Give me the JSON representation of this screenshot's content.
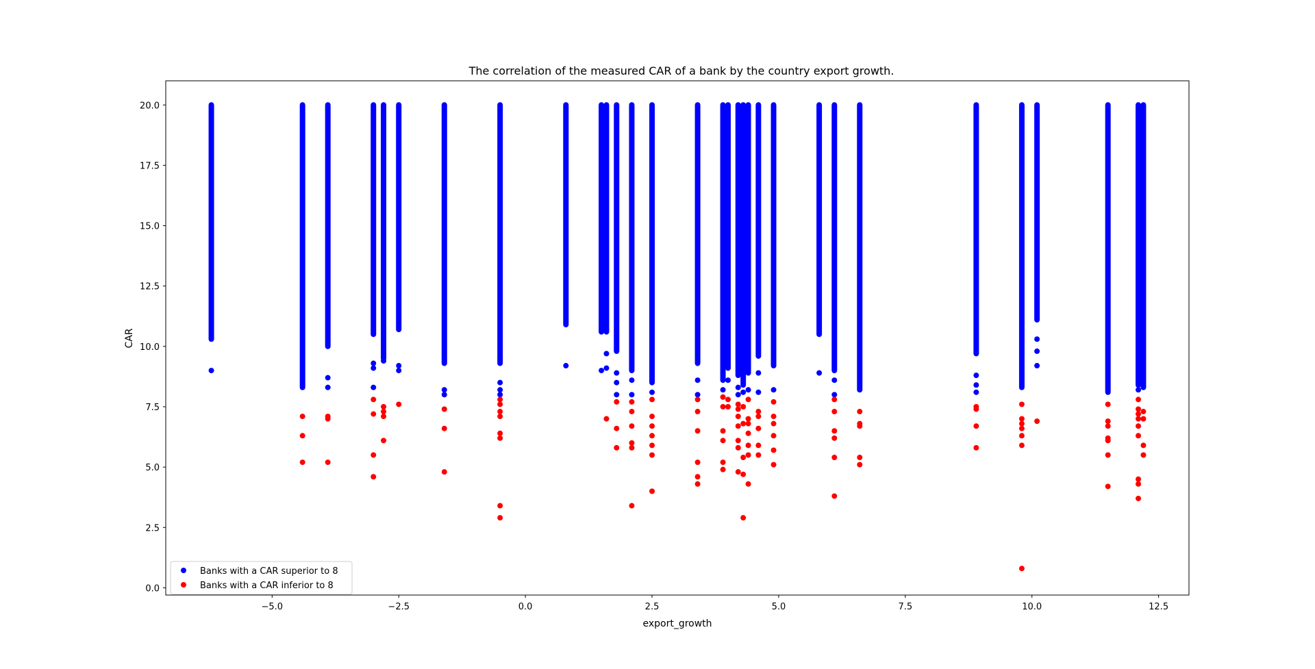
{
  "chart_data": {
    "type": "scatter",
    "title": "The correlation of the measured CAR of a bank by the country export growth.",
    "xlabel": "export_growth",
    "ylabel": "CAR",
    "xlim": [
      -7.1,
      13.1
    ],
    "ylim": [
      -0.3,
      21.0
    ],
    "xticks": [
      -5.0,
      -2.5,
      0.0,
      2.5,
      5.0,
      7.5,
      10.0,
      12.5
    ],
    "xtick_labels": [
      "−5.0",
      "−2.5",
      "0.0",
      "2.5",
      "5.0",
      "7.5",
      "10.0",
      "12.5"
    ],
    "yticks": [
      0.0,
      2.5,
      5.0,
      7.5,
      10.0,
      12.5,
      15.0,
      17.5,
      20.0
    ],
    "ytick_labels": [
      "0.0",
      "2.5",
      "5.0",
      "7.5",
      "10.0",
      "12.5",
      "15.0",
      "17.5",
      "20.0"
    ],
    "grid": false,
    "legend_position": "lower-left",
    "columns": [
      {
        "x": -6.2,
        "blue_min": 10.3,
        "blue_outliers": [
          9.0
        ],
        "red": []
      },
      {
        "x": -4.4,
        "blue_min": 8.3,
        "blue_outliers": [],
        "red": [
          7.1,
          6.3,
          5.2
        ]
      },
      {
        "x": -3.9,
        "blue_min": 10.0,
        "blue_outliers": [
          8.7,
          8.3
        ],
        "red": [
          7.1,
          7.0,
          5.2
        ]
      },
      {
        "x": -3.0,
        "blue_min": 10.5,
        "blue_outliers": [
          9.3,
          9.1,
          8.3
        ],
        "red": [
          7.8,
          7.2,
          5.5,
          4.6
        ]
      },
      {
        "x": -2.8,
        "blue_min": 9.5,
        "blue_outliers": [
          9.4
        ],
        "red": [
          7.5,
          7.3,
          7.1,
          6.1
        ]
      },
      {
        "x": -2.5,
        "blue_min": 10.7,
        "blue_outliers": [
          9.2,
          9.0
        ],
        "red": [
          7.6
        ]
      },
      {
        "x": -1.6,
        "blue_min": 9.3,
        "blue_outliers": [
          8.2,
          8.0
        ],
        "red": [
          7.4,
          6.6,
          4.8
        ]
      },
      {
        "x": -0.5,
        "blue_min": 9.3,
        "blue_outliers": [
          8.5,
          8.2,
          8.0
        ],
        "red": [
          7.8,
          7.6,
          7.3,
          7.1,
          6.4,
          6.2,
          3.4,
          2.9
        ]
      },
      {
        "x": 0.8,
        "blue_min": 10.9,
        "blue_outliers": [
          9.2
        ],
        "red": []
      },
      {
        "x": 1.5,
        "blue_min": 10.6,
        "blue_outliers": [
          9.0
        ],
        "red": []
      },
      {
        "x": 1.6,
        "blue_min": 10.6,
        "blue_outliers": [
          9.7,
          9.1
        ],
        "red": [
          7.0
        ]
      },
      {
        "x": 1.8,
        "blue_min": 9.8,
        "blue_outliers": [
          8.9,
          8.5,
          8.0
        ],
        "red": [
          7.7,
          6.6,
          5.8
        ]
      },
      {
        "x": 2.1,
        "blue_min": 9.0,
        "blue_outliers": [
          8.6,
          8.0
        ],
        "red": [
          7.7,
          7.3,
          6.7,
          6.0,
          5.8,
          3.4
        ]
      },
      {
        "x": 2.5,
        "blue_min": 8.5,
        "blue_outliers": [
          8.1
        ],
        "red": [
          7.8,
          7.1,
          6.7,
          6.3,
          5.9,
          5.5,
          4.0
        ]
      },
      {
        "x": 3.4,
        "blue_min": 9.3,
        "blue_outliers": [
          8.6,
          8.0
        ],
        "red": [
          7.8,
          7.3,
          6.5,
          5.2,
          4.6,
          4.3
        ]
      },
      {
        "x": 3.9,
        "blue_min": 8.6,
        "blue_outliers": [
          8.2
        ],
        "red": [
          7.9,
          7.5,
          6.5,
          6.1,
          5.2,
          4.9
        ]
      },
      {
        "x": 4.0,
        "blue_min": 9.1,
        "blue_outliers": [
          8.6
        ],
        "red": [
          7.8,
          7.5
        ]
      },
      {
        "x": 4.2,
        "blue_min": 8.8,
        "blue_outliers": [
          8.3,
          8.0
        ],
        "red": [
          7.6,
          7.4,
          7.1,
          6.7,
          6.1,
          5.8,
          4.8
        ]
      },
      {
        "x": 4.3,
        "blue_min": 8.4,
        "blue_outliers": [
          8.1
        ],
        "red": [
          7.5,
          6.8,
          5.4,
          4.7,
          2.9
        ]
      },
      {
        "x": 4.4,
        "blue_min": 8.9,
        "blue_outliers": [
          8.2
        ],
        "red": [
          7.8,
          7.0,
          6.8,
          6.4,
          5.9,
          5.5,
          4.3
        ]
      },
      {
        "x": 4.6,
        "blue_min": 9.6,
        "blue_outliers": [
          8.9,
          8.1
        ],
        "red": [
          7.3,
          7.1,
          6.6,
          5.9,
          5.5
        ]
      },
      {
        "x": 4.9,
        "blue_min": 9.2,
        "blue_outliers": [
          8.2
        ],
        "red": [
          7.7,
          7.1,
          6.8,
          6.3,
          5.7,
          5.1
        ]
      },
      {
        "x": 5.8,
        "blue_min": 10.5,
        "blue_outliers": [
          8.9
        ],
        "red": []
      },
      {
        "x": 6.1,
        "blue_min": 9.0,
        "blue_outliers": [
          8.6,
          8.0
        ],
        "red": [
          7.8,
          7.3,
          6.5,
          6.2,
          5.4,
          3.8
        ]
      },
      {
        "x": 6.6,
        "blue_min": 8.2,
        "blue_outliers": [],
        "red": [
          7.3,
          6.8,
          6.7,
          5.4,
          5.1
        ]
      },
      {
        "x": 8.9,
        "blue_min": 9.7,
        "blue_outliers": [
          8.8,
          8.4,
          8.1
        ],
        "red": [
          7.5,
          7.4,
          6.7,
          5.8
        ]
      },
      {
        "x": 9.8,
        "blue_min": 8.3,
        "blue_outliers": [],
        "red": [
          7.6,
          7.0,
          6.8,
          6.6,
          6.3,
          5.9,
          0.8
        ]
      },
      {
        "x": 10.1,
        "blue_min": 11.1,
        "blue_outliers": [
          10.3,
          9.8,
          9.2
        ],
        "red": [
          6.9
        ]
      },
      {
        "x": 11.5,
        "blue_min": 8.1,
        "blue_outliers": [],
        "red": [
          7.6,
          6.9,
          6.7,
          6.2,
          6.1,
          5.5,
          4.2
        ]
      },
      {
        "x": 12.1,
        "blue_min": 8.4,
        "blue_outliers": [
          8.2
        ],
        "red": [
          7.8,
          7.4,
          7.2,
          7.0,
          6.7,
          6.3,
          4.5,
          4.3,
          3.7
        ]
      },
      {
        "x": 12.2,
        "blue_min": 8.3,
        "blue_outliers": [],
        "red": [
          7.3,
          7.0,
          5.9,
          5.5
        ]
      }
    ],
    "series": [
      {
        "name": "Banks with a CAR superior to 8",
        "color": "#0000ff"
      },
      {
        "name": "Banks with a CAR inferior to 8",
        "color": "#ff0000"
      }
    ]
  }
}
